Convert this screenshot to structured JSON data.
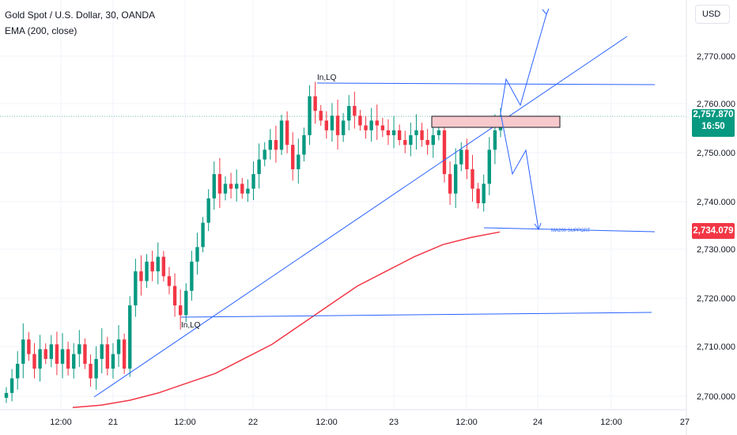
{
  "legend": {
    "symbol_title": "Gold Spot / U.S. Dollar, 30, OANDA",
    "indicator": "EMA (200, close)"
  },
  "currency": "USD",
  "price_axis": {
    "ticks": [
      "2,770.000",
      "2,760.000",
      "2,750.000",
      "2,740.000",
      "2,730.000",
      "2,720.000",
      "2,710.000",
      "2,700.000"
    ]
  },
  "time_axis": {
    "ticks": [
      "12:00",
      "21",
      "12:00",
      "22",
      "12:00",
      "23",
      "12:00",
      "24",
      "12:00",
      "27"
    ]
  },
  "last_price": {
    "value": "2,757.870",
    "countdown": "16:50"
  },
  "ema_badge": {
    "value": "2,734.079"
  },
  "annotations": {
    "top_label": "In,LQ",
    "bottom_label": "In,LQ",
    "support_label": "MA200 SUPPORT"
  },
  "colors": {
    "bull": "#089981",
    "bear": "#f23645",
    "ema": "#f23645",
    "drawing": "#2962ff",
    "zone_fill": "#f8c9cc"
  },
  "chart_data": {
    "type": "candlestick",
    "title": "Gold Spot / U.S. Dollar, 30, OANDA",
    "ylim": [
      2697,
      2781
    ],
    "x_ticks": [
      "12:00",
      "21",
      "12:00",
      "22",
      "12:00",
      "23",
      "12:00",
      "24",
      "12:00",
      "27"
    ],
    "close_path": [
      2701,
      2704,
      2707,
      2712,
      2709,
      2706,
      2710,
      2708,
      2711,
      2707,
      2710,
      2706,
      2709,
      2711,
      2707,
      2704,
      2708,
      2711,
      2706,
      2709,
      2712,
      2706,
      2719,
      2726,
      2724,
      2728,
      2726,
      2729,
      2725,
      2723,
      2719,
      2717,
      2722,
      2728,
      2731,
      2736,
      2741,
      2746,
      2742,
      2744,
      2743,
      2744,
      2742,
      2743,
      2746,
      2749,
      2751,
      2753,
      2751,
      2757,
      2752,
      2747,
      2750,
      2754,
      2762,
      2759,
      2757,
      2755,
      2758,
      2754,
      2757,
      2760,
      2758,
      2756,
      2755,
      2757,
      2756,
      2755,
      2754,
      2755,
      2753,
      2752,
      2754,
      2755,
      2753,
      2752,
      2754,
      2755,
      2746,
      2742,
      2748,
      2751,
      2747,
      2743,
      2740,
      2744,
      2751,
      2755,
      2758
    ],
    "ema_path": [
      2698,
      2698.5,
      2699.5,
      2701,
      2703,
      2705,
      2708,
      2711,
      2715,
      2719,
      2723,
      2726,
      2729,
      2731.5,
      2733,
      2734.1
    ],
    "levels": {
      "last": 2757.87,
      "ema200": 2734.079
    }
  }
}
